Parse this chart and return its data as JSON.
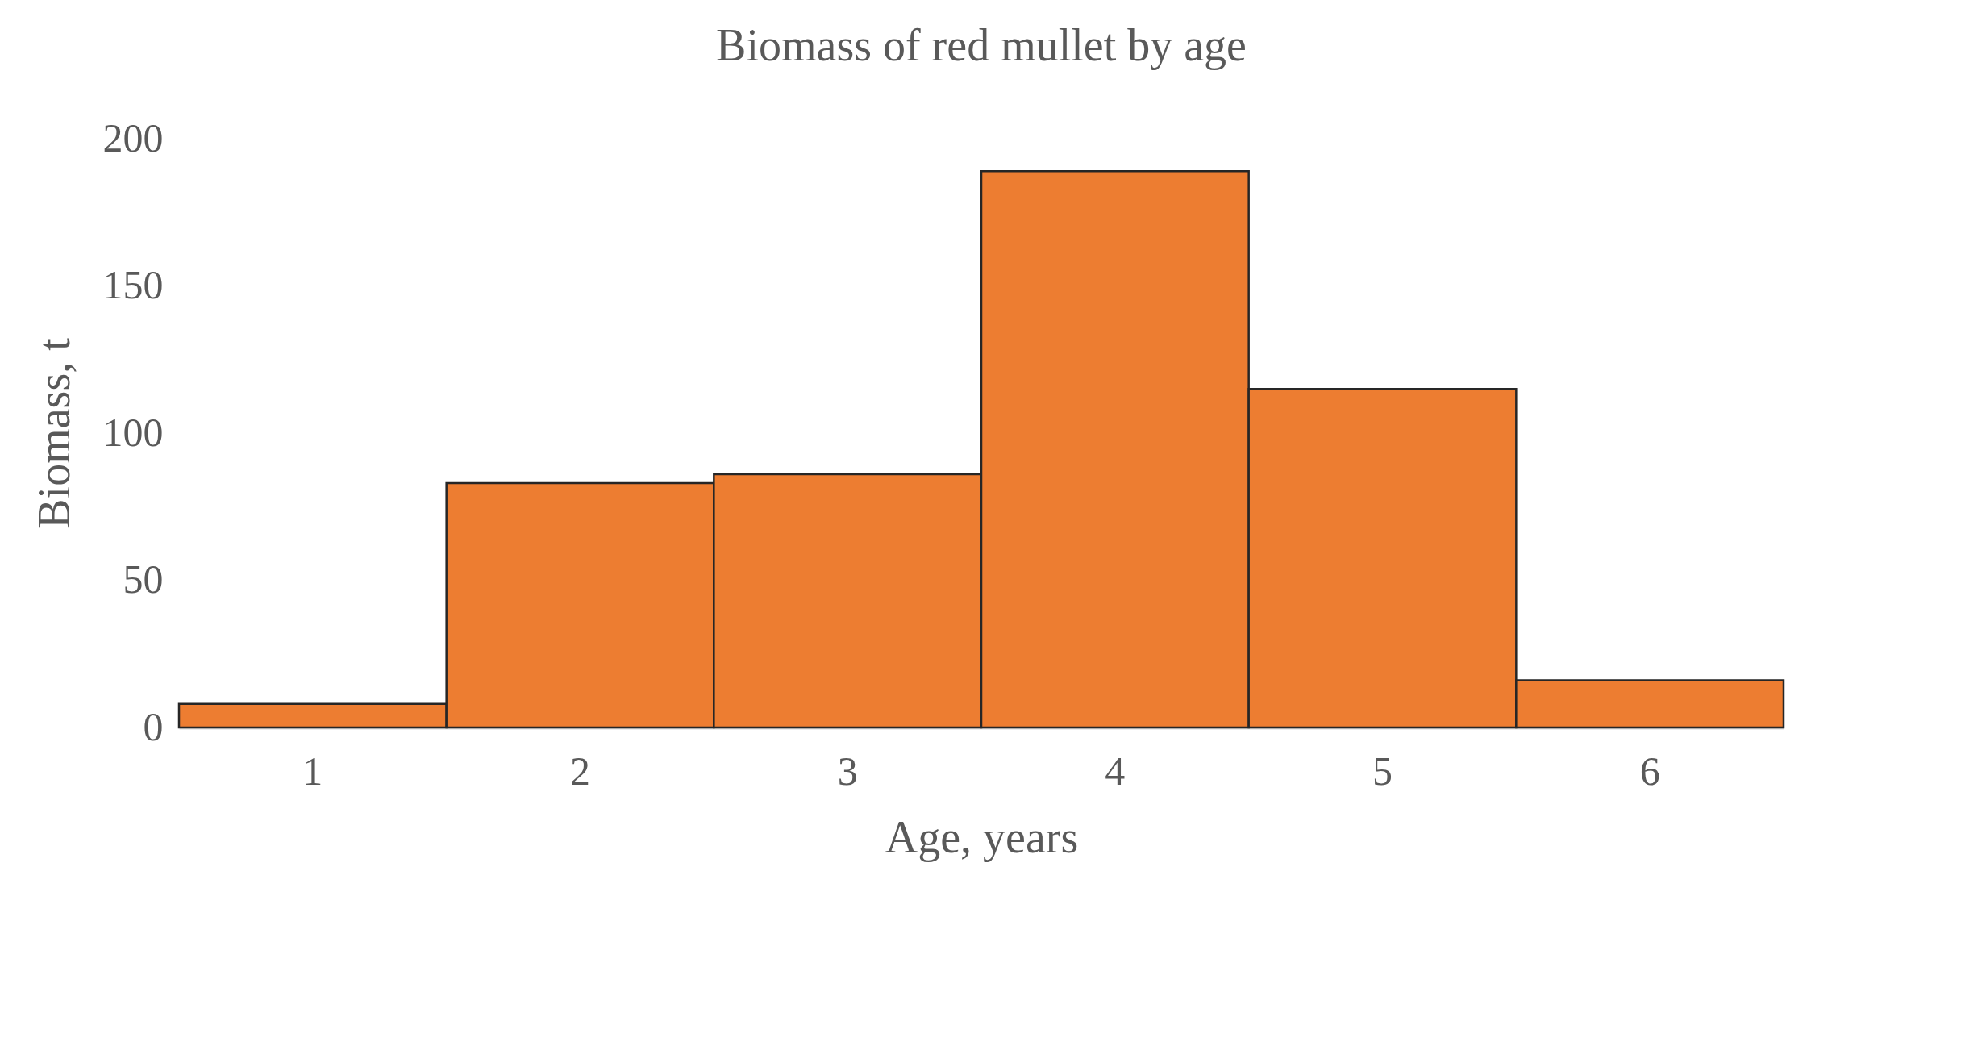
{
  "chart_data": {
    "type": "bar",
    "title": "Biomass of red mullet by age",
    "xlabel": "Age, years",
    "ylabel": "Biomass, t",
    "categories": [
      "1",
      "2",
      "3",
      "4",
      "5",
      "6"
    ],
    "values": [
      8,
      83,
      86,
      189,
      115,
      16
    ],
    "color": "#ed7d31",
    "ylim": [
      0,
      200
    ],
    "yticks": [
      0,
      50,
      100,
      150,
      200
    ],
    "grid": false
  }
}
